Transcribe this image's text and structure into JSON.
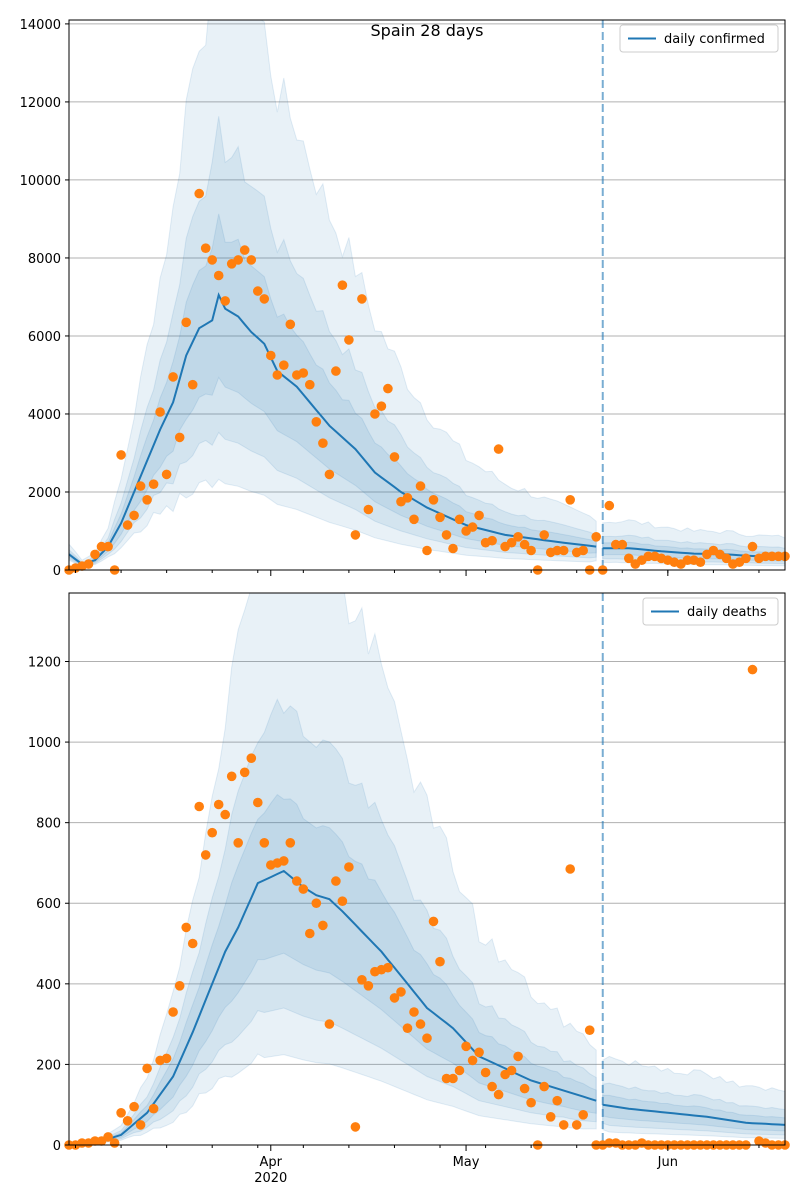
{
  "colors": {
    "band": "#1f77b4",
    "median_line": "#1f77b4",
    "observed_points": "#ff7f0e",
    "grid": "#b0b0b0",
    "forecast_marker": "#1f77b4"
  },
  "chart_data": [
    {
      "type": "line",
      "title": "Spain 28 days",
      "xlabel": "",
      "ylabel": "",
      "x_start": "2020-03-01",
      "x_end": "2020-06-19",
      "xlim": [
        "2020-03-01",
        "2020-06-19"
      ],
      "ylim": [
        0,
        14100
      ],
      "yticks": [
        0,
        2000,
        4000,
        6000,
        8000,
        10000,
        12000,
        14000
      ],
      "ytick_labels": [
        "0",
        "2000",
        "4000",
        "6000",
        "8000",
        "10000",
        "12000",
        "14000"
      ],
      "xticks": [],
      "grid": "horizontal",
      "legend": {
        "position": "top-right",
        "entries": [
          "daily confirmed"
        ]
      },
      "forecast_start": "2020-05-22",
      "median_knots": [
        [
          "2020-03-01",
          400
        ],
        [
          "2020-03-03",
          150
        ],
        [
          "2020-03-05",
          250
        ],
        [
          "2020-03-07",
          600
        ],
        [
          "2020-03-09",
          1200
        ],
        [
          "2020-03-11",
          2000
        ],
        [
          "2020-03-13",
          2800
        ],
        [
          "2020-03-15",
          3600
        ],
        [
          "2020-03-17",
          4300
        ],
        [
          "2020-03-19",
          5500
        ],
        [
          "2020-03-21",
          6200
        ],
        [
          "2020-03-23",
          6400
        ],
        [
          "2020-03-24",
          7050
        ],
        [
          "2020-03-25",
          6700
        ],
        [
          "2020-03-27",
          6500
        ],
        [
          "2020-03-29",
          6100
        ],
        [
          "2020-03-31",
          5800
        ],
        [
          "2020-04-02",
          5100
        ],
        [
          "2020-04-05",
          4700
        ],
        [
          "2020-04-08",
          4100
        ],
        [
          "2020-04-10",
          3700
        ],
        [
          "2020-04-12",
          3400
        ],
        [
          "2020-04-14",
          3100
        ],
        [
          "2020-04-17",
          2500
        ],
        [
          "2020-04-21",
          2000
        ],
        [
          "2020-04-25",
          1600
        ],
        [
          "2020-05-01",
          1150
        ],
        [
          "2020-05-07",
          900
        ],
        [
          "2020-05-15",
          720
        ],
        [
          "2020-05-21",
          600
        ],
        [
          "2020-05-22",
          560
        ],
        [
          "2020-05-26",
          560
        ],
        [
          "2020-05-31",
          480
        ],
        [
          "2020-06-05",
          420
        ],
        [
          "2020-06-10",
          400
        ],
        [
          "2020-06-15",
          350
        ],
        [
          "2020-06-19",
          330
        ]
      ],
      "band_width_knots": [
        [
          "2020-03-01",
          0.55
        ],
        [
          "2020-03-10",
          0.8
        ],
        [
          "2020-03-25",
          1.1
        ],
        [
          "2020-04-20",
          1.3
        ],
        [
          "2020-05-10",
          1.2
        ],
        [
          "2020-05-21",
          1.0
        ],
        [
          "2020-05-22",
          1.0
        ],
        [
          "2020-06-19",
          1.3
        ]
      ],
      "series": [
        {
          "name": "daily confirmed",
          "x": [
            "2020-03-01",
            "2020-03-02",
            "2020-03-03",
            "2020-03-04",
            "2020-03-05",
            "2020-03-06",
            "2020-03-07",
            "2020-03-08",
            "2020-03-09",
            "2020-03-10",
            "2020-03-11",
            "2020-03-12",
            "2020-03-13",
            "2020-03-14",
            "2020-03-15",
            "2020-03-16",
            "2020-03-17",
            "2020-03-18",
            "2020-03-19",
            "2020-03-20",
            "2020-03-21",
            "2020-03-22",
            "2020-03-23",
            "2020-03-24",
            "2020-03-25",
            "2020-03-26",
            "2020-03-27",
            "2020-03-28",
            "2020-03-29",
            "2020-03-30",
            "2020-03-31",
            "2020-04-01",
            "2020-04-02",
            "2020-04-03",
            "2020-04-04",
            "2020-04-05",
            "2020-04-06",
            "2020-04-07",
            "2020-04-08",
            "2020-04-09",
            "2020-04-10",
            "2020-04-11",
            "2020-04-12",
            "2020-04-13",
            "2020-04-14",
            "2020-04-15",
            "2020-04-16",
            "2020-04-17",
            "2020-04-18",
            "2020-04-19",
            "2020-04-20",
            "2020-04-21",
            "2020-04-22",
            "2020-04-23",
            "2020-04-24",
            "2020-04-25",
            "2020-04-26",
            "2020-04-27",
            "2020-04-28",
            "2020-04-29",
            "2020-04-30",
            "2020-05-01",
            "2020-05-02",
            "2020-05-03",
            "2020-05-04",
            "2020-05-05",
            "2020-05-06",
            "2020-05-07",
            "2020-05-08",
            "2020-05-09",
            "2020-05-10",
            "2020-05-11",
            "2020-05-12",
            "2020-05-13",
            "2020-05-14",
            "2020-05-15",
            "2020-05-16",
            "2020-05-17",
            "2020-05-18",
            "2020-05-19",
            "2020-05-20",
            "2020-05-21",
            "2020-05-22",
            "2020-05-23",
            "2020-05-24",
            "2020-05-25",
            "2020-05-26",
            "2020-05-27",
            "2020-05-28",
            "2020-05-29",
            "2020-05-30",
            "2020-05-31",
            "2020-06-01",
            "2020-06-02",
            "2020-06-03",
            "2020-06-04",
            "2020-06-05",
            "2020-06-06",
            "2020-06-07",
            "2020-06-08",
            "2020-06-09",
            "2020-06-10",
            "2020-06-11",
            "2020-06-12",
            "2020-06-13",
            "2020-06-14",
            "2020-06-15",
            "2020-06-16",
            "2020-06-17",
            "2020-06-18",
            "2020-06-19"
          ],
          "values": [
            0,
            50,
            100,
            150,
            400,
            600,
            600,
            0,
            2950,
            1150,
            1400,
            2150,
            1800,
            2200,
            4050,
            2450,
            4950,
            3400,
            6350,
            4750,
            9650,
            8250,
            7950,
            7550,
            6900,
            7850,
            7950,
            8200,
            7950,
            7150,
            6950,
            5500,
            5000,
            5250,
            6300,
            5000,
            5050,
            4750,
            3800,
            3250,
            2450,
            5100,
            7300,
            5900,
            900,
            6950,
            1550,
            4000,
            4200,
            4650,
            2900,
            1750,
            1850,
            1300,
            2150,
            500,
            1800,
            1350,
            900,
            550,
            1300,
            1000,
            1100,
            1400,
            700,
            750,
            3100,
            600,
            700,
            850,
            650,
            500,
            0,
            900,
            450,
            500,
            500,
            1800,
            450,
            500,
            0,
            850,
            0,
            1650,
            650,
            650,
            300,
            150,
            250,
            350,
            350,
            300,
            250,
            200,
            150,
            250,
            250,
            200,
            400,
            500,
            400,
            300,
            150,
            200,
            300,
            600,
            300,
            350,
            350,
            350,
            350
          ]
        }
      ]
    },
    {
      "type": "line",
      "title": "",
      "xlabel": "",
      "ylabel": "",
      "x_start": "2020-03-01",
      "x_end": "2020-06-19",
      "xlim": [
        "2020-03-01",
        "2020-06-19"
      ],
      "ylim": [
        0,
        1370
      ],
      "yticks": [
        0,
        200,
        400,
        600,
        800,
        1000,
        1200
      ],
      "ytick_labels": [
        "0",
        "200",
        "400",
        "600",
        "800",
        "1000",
        "1200"
      ],
      "xticks": [
        {
          "date": "2020-04-01",
          "label": "Apr",
          "sublabel": "2020"
        },
        {
          "date": "2020-05-01",
          "label": "May"
        },
        {
          "date": "2020-06-01",
          "label": "Jun"
        }
      ],
      "grid": "horizontal",
      "legend": {
        "position": "top-right",
        "entries": [
          "daily deaths"
        ]
      },
      "forecast_start": "2020-05-22",
      "median_knots": [
        [
          "2020-03-01",
          0
        ],
        [
          "2020-03-05",
          5
        ],
        [
          "2020-03-09",
          25
        ],
        [
          "2020-03-13",
          80
        ],
        [
          "2020-03-17",
          170
        ],
        [
          "2020-03-20",
          280
        ],
        [
          "2020-03-23",
          400
        ],
        [
          "2020-03-25",
          480
        ],
        [
          "2020-03-27",
          540
        ],
        [
          "2020-03-30",
          650
        ],
        [
          "2020-04-01",
          665
        ],
        [
          "2020-04-03",
          680
        ],
        [
          "2020-04-06",
          640
        ],
        [
          "2020-04-08",
          620
        ],
        [
          "2020-04-10",
          610
        ],
        [
          "2020-04-12",
          580
        ],
        [
          "2020-04-15",
          530
        ],
        [
          "2020-04-18",
          480
        ],
        [
          "2020-04-21",
          420
        ],
        [
          "2020-04-25",
          340
        ],
        [
          "2020-04-29",
          290
        ],
        [
          "2020-05-03",
          220
        ],
        [
          "2020-05-07",
          190
        ],
        [
          "2020-05-11",
          160
        ],
        [
          "2020-05-15",
          140
        ],
        [
          "2020-05-19",
          120
        ],
        [
          "2020-05-21",
          110
        ],
        [
          "2020-05-22",
          100
        ],
        [
          "2020-05-26",
          90
        ],
        [
          "2020-06-01",
          80
        ],
        [
          "2020-06-07",
          70
        ],
        [
          "2020-06-13",
          55
        ],
        [
          "2020-06-19",
          50
        ]
      ],
      "band_width_knots": [
        [
          "2020-03-01",
          0.6
        ],
        [
          "2020-03-10",
          0.85
        ],
        [
          "2020-03-25",
          1.05
        ],
        [
          "2020-04-20",
          1.2
        ],
        [
          "2020-05-10",
          1.15
        ],
        [
          "2020-05-21",
          1.0
        ],
        [
          "2020-05-22",
          1.0
        ],
        [
          "2020-06-19",
          1.4
        ]
      ],
      "series": [
        {
          "name": "daily deaths",
          "x": [
            "2020-03-01",
            "2020-03-02",
            "2020-03-03",
            "2020-03-04",
            "2020-03-05",
            "2020-03-06",
            "2020-03-07",
            "2020-03-08",
            "2020-03-09",
            "2020-03-10",
            "2020-03-11",
            "2020-03-12",
            "2020-03-13",
            "2020-03-14",
            "2020-03-15",
            "2020-03-16",
            "2020-03-17",
            "2020-03-18",
            "2020-03-19",
            "2020-03-20",
            "2020-03-21",
            "2020-03-22",
            "2020-03-23",
            "2020-03-24",
            "2020-03-25",
            "2020-03-26",
            "2020-03-27",
            "2020-03-28",
            "2020-03-29",
            "2020-03-30",
            "2020-03-31",
            "2020-04-01",
            "2020-04-02",
            "2020-04-03",
            "2020-04-04",
            "2020-04-05",
            "2020-04-06",
            "2020-04-07",
            "2020-04-08",
            "2020-04-09",
            "2020-04-10",
            "2020-04-11",
            "2020-04-12",
            "2020-04-13",
            "2020-04-14",
            "2020-04-15",
            "2020-04-16",
            "2020-04-17",
            "2020-04-18",
            "2020-04-19",
            "2020-04-20",
            "2020-04-21",
            "2020-04-22",
            "2020-04-23",
            "2020-04-24",
            "2020-04-25",
            "2020-04-26",
            "2020-04-27",
            "2020-04-28",
            "2020-04-29",
            "2020-04-30",
            "2020-05-01",
            "2020-05-02",
            "2020-05-03",
            "2020-05-04",
            "2020-05-05",
            "2020-05-06",
            "2020-05-07",
            "2020-05-08",
            "2020-05-09",
            "2020-05-10",
            "2020-05-11",
            "2020-05-12",
            "2020-05-13",
            "2020-05-14",
            "2020-05-15",
            "2020-05-16",
            "2020-05-17",
            "2020-05-18",
            "2020-05-19",
            "2020-05-20",
            "2020-05-21",
            "2020-05-22",
            "2020-05-23",
            "2020-05-24",
            "2020-05-25",
            "2020-05-26",
            "2020-05-27",
            "2020-05-28",
            "2020-05-29",
            "2020-05-30",
            "2020-05-31",
            "2020-06-01",
            "2020-06-02",
            "2020-06-03",
            "2020-06-04",
            "2020-06-05",
            "2020-06-06",
            "2020-06-07",
            "2020-06-08",
            "2020-06-09",
            "2020-06-10",
            "2020-06-11",
            "2020-06-12",
            "2020-06-13",
            "2020-06-14",
            "2020-06-15",
            "2020-06-16",
            "2020-06-17",
            "2020-06-18",
            "2020-06-19"
          ],
          "values": [
            0,
            0,
            5,
            5,
            10,
            10,
            20,
            5,
            80,
            60,
            95,
            50,
            190,
            90,
            210,
            215,
            330,
            395,
            540,
            500,
            840,
            720,
            775,
            845,
            820,
            915,
            750,
            925,
            960,
            850,
            750,
            695,
            700,
            705,
            750,
            655,
            635,
            525,
            600,
            545,
            300,
            655,
            605,
            690,
            45,
            410,
            395,
            430,
            435,
            440,
            365,
            380,
            290,
            330,
            300,
            265,
            555,
            455,
            165,
            165,
            185,
            245,
            210,
            230,
            180,
            145,
            125,
            175,
            185,
            220,
            140,
            105,
            0,
            145,
            70,
            110,
            50,
            685,
            50,
            75,
            285,
            0,
            0,
            5,
            5,
            0,
            0,
            0,
            5,
            0,
            0,
            0,
            0,
            0,
            0,
            0,
            0,
            0,
            0,
            0,
            0,
            0,
            0,
            0,
            0,
            1180,
            10,
            5,
            0,
            0,
            0
          ]
        }
      ]
    }
  ]
}
